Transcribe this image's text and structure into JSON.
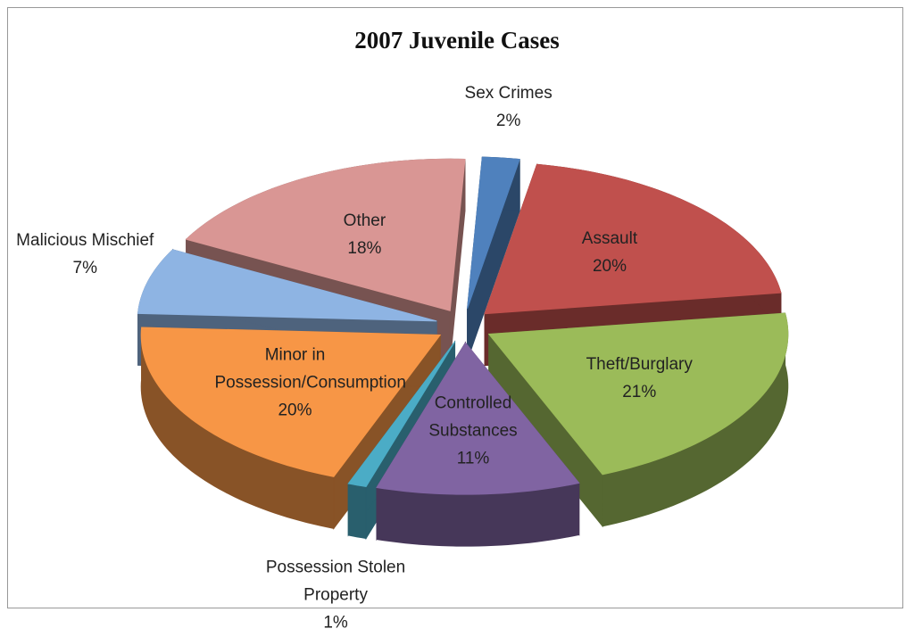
{
  "chart_data": {
    "type": "pie3d",
    "title": "2007 Juvenile Cases",
    "categories": [
      "Sex Crimes",
      "Assault",
      "Theft/Burglary",
      "Controlled Substances",
      "Possession Stolen Property",
      "Minor in Possession/Consumption",
      "Malicious Mischief",
      "Other"
    ],
    "values": [
      2,
      20,
      21,
      11,
      1,
      20,
      7,
      18
    ],
    "value_labels": [
      "2%",
      "20%",
      "21%",
      "11%",
      "1%",
      "20%",
      "7%",
      "18%"
    ],
    "colors": [
      "#4f81bd",
      "#c0504d",
      "#9bbb59",
      "#8064a2",
      "#4bacc6",
      "#f79646",
      "#8eb4e3",
      "#d99694"
    ]
  }
}
